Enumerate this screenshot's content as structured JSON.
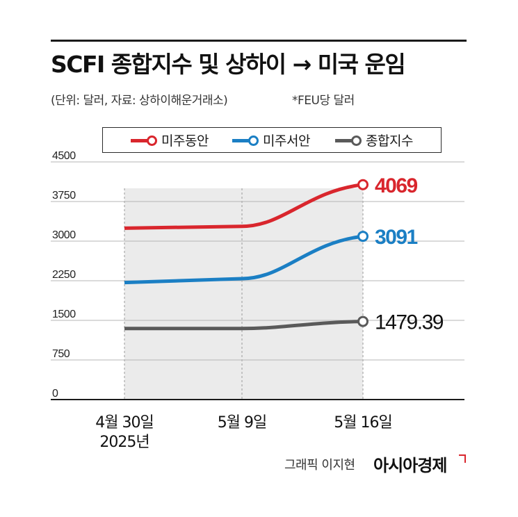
{
  "header": {
    "title": "SCFI 종합지수 및 상하이 → 미국 운임",
    "subtitle": "(단위: 달러, 자료: 상하이해운거래소)",
    "unit_note": "*FEU당 달러"
  },
  "colors": {
    "east": "#d9262d",
    "west": "#1b7fc4",
    "composite": "#5a5a5a",
    "shade": "#ebebeb",
    "grid": "#b5b5b5"
  },
  "chart_data": {
    "type": "line",
    "title": "SCFI 종합지수 및 상하이 → 미국 운임",
    "x": [
      "4월 30일",
      "5월 9일",
      "5월 16일"
    ],
    "x_sub": [
      "2025년",
      "",
      ""
    ],
    "ylim": [
      0,
      4500
    ],
    "yticks": [
      0,
      750,
      1500,
      2250,
      3000,
      3750,
      4500
    ],
    "series": [
      {
        "name": "미주동안",
        "key": "east",
        "values": [
          3245,
          3280,
          4069
        ],
        "end_label": "4069"
      },
      {
        "name": "미주서안",
        "key": "west",
        "values": [
          2215,
          2290,
          3091
        ],
        "end_label": "3091"
      },
      {
        "name": "종합지수",
        "key": "composite",
        "values": [
          1345,
          1346,
          1479.39
        ],
        "end_label": "1479.39"
      }
    ],
    "legend_position": "top"
  },
  "footer": {
    "credit": "그래픽 이지현",
    "brand": "아시아경제"
  }
}
